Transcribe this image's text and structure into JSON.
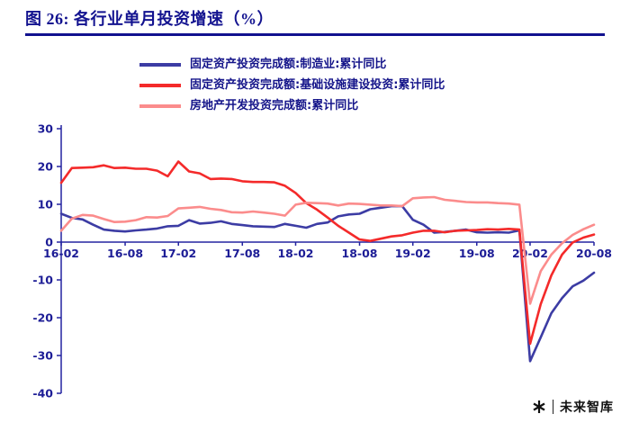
{
  "header": {
    "title": "图 26: 各行业单月投资增速（%）"
  },
  "watermark": {
    "text": "未来智库",
    "logo": "asterisk-logo-icon"
  },
  "chart_data": {
    "type": "line",
    "figure_label": "图 26",
    "title": "各行业单月投资增速（%）",
    "grid": false,
    "legend_position": "top",
    "axis_color": "#2323A0",
    "ylim": [
      -40,
      30
    ],
    "yticks": [
      30,
      20,
      10,
      0,
      -10,
      -20,
      -30,
      -40
    ],
    "x": [
      "16-02",
      "16-03",
      "16-04",
      "16-05",
      "16-06",
      "16-07",
      "16-08",
      "16-09",
      "16-10",
      "16-11",
      "16-12",
      "17-02",
      "17-03",
      "17-04",
      "17-05",
      "17-06",
      "17-07",
      "17-08",
      "17-09",
      "17-10",
      "17-11",
      "17-12",
      "18-02",
      "18-03",
      "18-04",
      "18-05",
      "18-06",
      "18-07",
      "18-08",
      "18-09",
      "18-10",
      "18-11",
      "18-12",
      "19-02",
      "19-03",
      "19-04",
      "19-05",
      "19-06",
      "19-07",
      "19-08",
      "19-09",
      "19-10",
      "19-11",
      "19-12",
      "20-02",
      "20-03",
      "20-04",
      "20-05",
      "20-06",
      "20-07",
      "20-08"
    ],
    "xticks": [
      {
        "index": 0,
        "label": "16-02"
      },
      {
        "index": 6,
        "label": "16-08"
      },
      {
        "index": 11,
        "label": "17-02"
      },
      {
        "index": 17,
        "label": "17-08"
      },
      {
        "index": 22,
        "label": "18-02"
      },
      {
        "index": 28,
        "label": "18-08"
      },
      {
        "index": 33,
        "label": "19-02"
      },
      {
        "index": 39,
        "label": "19-08"
      },
      {
        "index": 44,
        "label": "20-02"
      },
      {
        "index": 50,
        "label": "20-08"
      }
    ],
    "series": [
      {
        "name": "固定资产投资完成额:制造业:累计同比",
        "color": "#3C3CA4",
        "values": [
          7.5,
          6.4,
          6.0,
          4.6,
          3.3,
          3.0,
          2.8,
          3.1,
          3.3,
          3.6,
          4.2,
          4.3,
          5.8,
          4.9,
          5.1,
          5.5,
          4.8,
          4.5,
          4.2,
          4.1,
          4.0,
          4.8,
          4.3,
          3.8,
          4.8,
          5.2,
          6.8,
          7.3,
          7.5,
          8.7,
          9.1,
          9.5,
          9.5,
          5.9,
          4.6,
          2.5,
          2.7,
          3.0,
          3.3,
          2.6,
          2.5,
          2.6,
          2.5,
          3.1,
          -31.5,
          -25.2,
          -18.8,
          -14.8,
          -11.7,
          -10.2,
          -8.1
        ]
      },
      {
        "name": "固定资产投资完成额:基础设施建设投资:累计同比",
        "color": "#F42A2A",
        "values": [
          15.7,
          19.6,
          19.7,
          19.8,
          20.3,
          19.6,
          19.7,
          19.4,
          19.4,
          18.9,
          17.4,
          21.3,
          18.7,
          18.2,
          16.7,
          16.8,
          16.7,
          16.1,
          15.9,
          15.9,
          15.8,
          14.9,
          13.0,
          10.3,
          8.6,
          6.5,
          4.3,
          2.5,
          0.7,
          0.3,
          0.9,
          1.5,
          1.8,
          2.5,
          3.0,
          3.0,
          2.6,
          3.0,
          3.1,
          3.2,
          3.4,
          3.3,
          3.5,
          3.3,
          -26.9,
          -16.4,
          -8.8,
          -3.3,
          -0.1,
          1.2,
          2.0
        ]
      },
      {
        "name": "房地产开发投资完成额:累计同比",
        "color": "#FB8C8C",
        "values": [
          3.0,
          6.2,
          7.2,
          7.0,
          6.1,
          5.3,
          5.4,
          5.8,
          6.6,
          6.5,
          6.9,
          8.9,
          9.1,
          9.3,
          8.8,
          8.5,
          7.9,
          7.8,
          8.1,
          7.8,
          7.5,
          7.0,
          9.9,
          10.4,
          10.3,
          10.2,
          9.7,
          10.2,
          10.1,
          9.9,
          9.7,
          9.7,
          9.5,
          11.6,
          11.8,
          11.9,
          11.2,
          10.9,
          10.6,
          10.5,
          10.5,
          10.3,
          10.2,
          9.9,
          -16.3,
          -7.7,
          -3.3,
          -0.3,
          1.9,
          3.4,
          4.6
        ]
      }
    ]
  }
}
